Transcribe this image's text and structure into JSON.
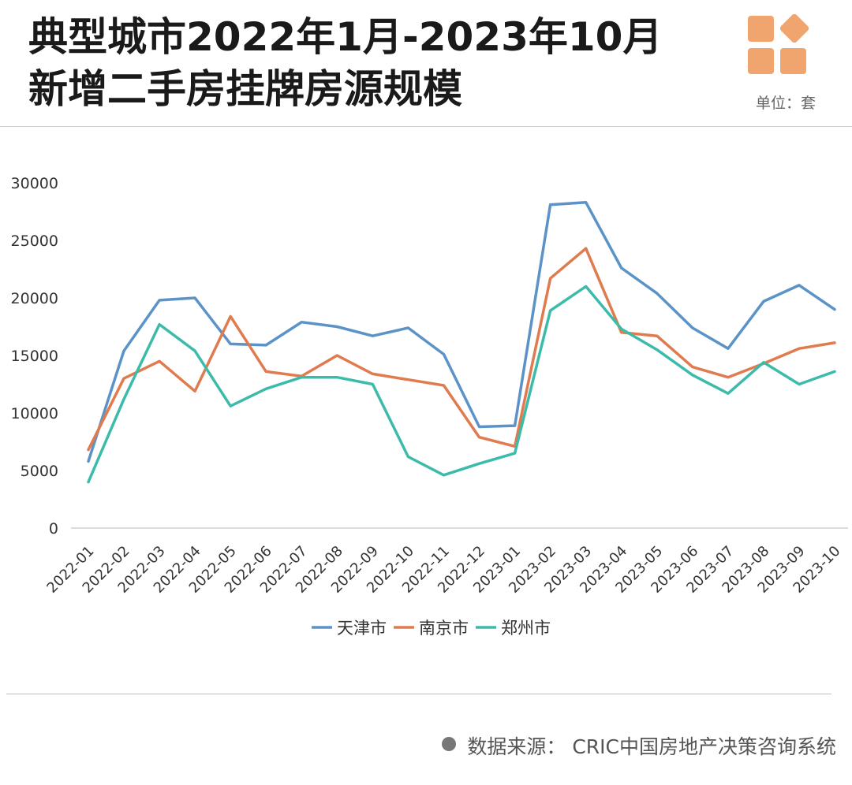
{
  "header": {
    "title_line1": "典型城市2022年1月-2023年10月",
    "title_line2": "新增二手房挂牌房源规模",
    "unit": "单位：套",
    "logo_icon": "four-squares-logo-icon",
    "logo_color": "#F0A56E"
  },
  "footer": {
    "source": "数据来源：  CRIC中国房地产决策咨询系统"
  },
  "chart_data": {
    "type": "line",
    "title": "典型城市2022年1月-2023年10月新增二手房挂牌房源规模",
    "xlabel": "",
    "ylabel": "单位：套",
    "ylim": [
      0,
      30000
    ],
    "yticks": [
      0,
      5000,
      10000,
      15000,
      20000,
      25000,
      30000
    ],
    "legend_position": "bottom-center",
    "grid": false,
    "categories": [
      "2022-01",
      "2022-02",
      "2022-03",
      "2022-04",
      "2022-05",
      "2022-06",
      "2022-07",
      "2022-08",
      "2022-09",
      "2022-10",
      "2022-11",
      "2022-12",
      "2023-01",
      "2023-02",
      "2023-03",
      "2023-04",
      "2023-05",
      "2023-06",
      "2023-07",
      "2023-08",
      "2023-09",
      "2023-10"
    ],
    "series": [
      {
        "name": "天津市",
        "color": "#5B93C8",
        "values": [
          5800,
          15400,
          19800,
          20000,
          16000,
          15900,
          17900,
          17500,
          16700,
          17400,
          15100,
          8800,
          8900,
          28100,
          28300,
          22600,
          20400,
          17400,
          15600,
          19700,
          21100,
          19000
        ]
      },
      {
        "name": "南京市",
        "color": "#E07B4F",
        "values": [
          6800,
          13000,
          14500,
          11900,
          18400,
          13600,
          13200,
          15000,
          13400,
          12900,
          12400,
          7900,
          7100,
          21700,
          24300,
          17000,
          16700,
          14000,
          13100,
          14300,
          15600,
          16100
        ]
      },
      {
        "name": "郑州市",
        "color": "#3DBBAA",
        "values": [
          4000,
          11200,
          17700,
          15400,
          10600,
          12100,
          13100,
          13100,
          12500,
          6200,
          4600,
          5600,
          6500,
          18900,
          21000,
          17300,
          15500,
          13300,
          11700,
          14400,
          12500,
          13600
        ]
      }
    ]
  }
}
